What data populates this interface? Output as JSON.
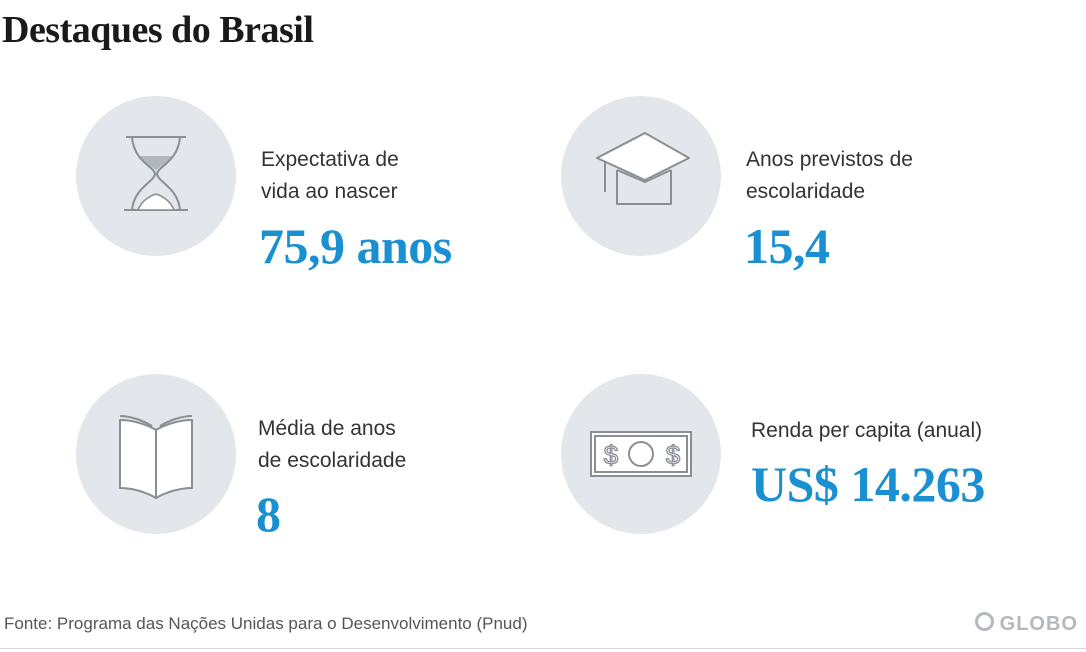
{
  "title": "Destaques do Brasil",
  "stats": [
    {
      "label_line1": "Expectativa de",
      "label_line2": "vida ao nascer",
      "value": "75,9 anos",
      "icon": "hourglass-icon"
    },
    {
      "label_line1": "Anos previstos de",
      "label_line2": "escolaridade",
      "value": "15,4",
      "icon": "graduation-cap-icon"
    },
    {
      "label_line1": "Média de anos",
      "label_line2": "de escolaridade",
      "value": "8",
      "icon": "book-icon"
    },
    {
      "label_line1": "Renda per capita (anual)",
      "label_line2": "",
      "value": "US$ 14.263",
      "icon": "money-bill-icon"
    }
  ],
  "footer": {
    "source": "Fonte: Programa das Nações Unidas para o Desenvolvimento (Pnud)",
    "logo_text": "GLOBO"
  },
  "colors": {
    "accent": "#1a8fd1",
    "circle": "#e3e6ea",
    "icon_stroke": "#8a8f96"
  }
}
